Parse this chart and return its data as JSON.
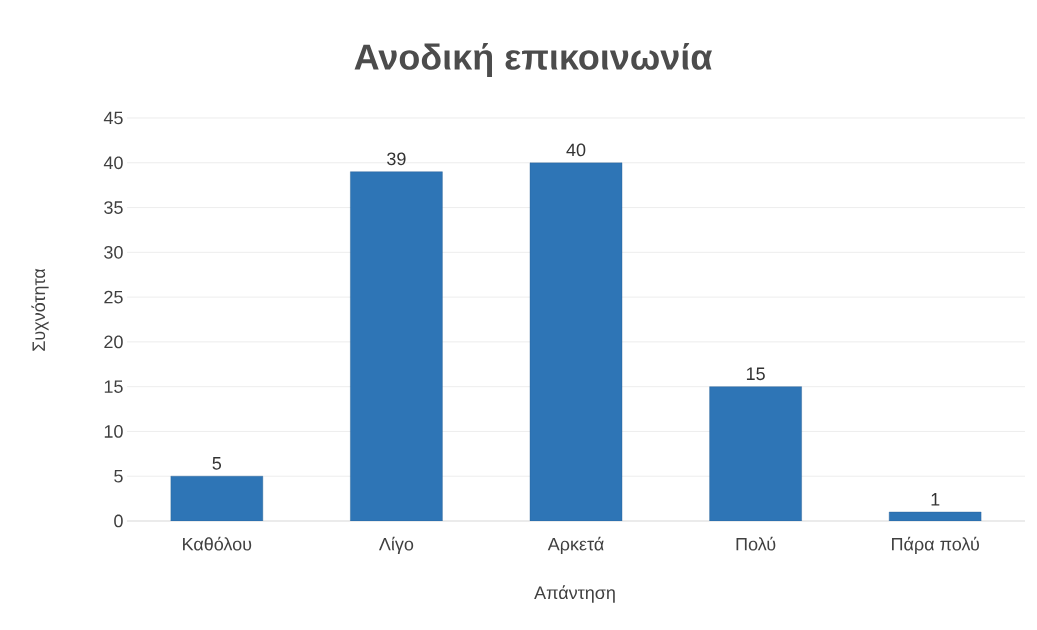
{
  "chart_data": {
    "type": "bar",
    "title": "Ανοδική επικοινωνία",
    "xlabel": "Απάντηση",
    "ylabel": "Συχνότητα",
    "categories": [
      "Καθόλου",
      "Λίγο",
      "Αρκετά",
      "Πολύ",
      "Πάρα πολύ"
    ],
    "values": [
      5,
      39,
      40,
      15,
      1
    ],
    "color": "#2e75b6",
    "ylim": [
      0,
      45
    ],
    "yticks": [
      0,
      5,
      10,
      15,
      20,
      25,
      30,
      35,
      40,
      45
    ],
    "grid": "y",
    "data_labels": true
  }
}
